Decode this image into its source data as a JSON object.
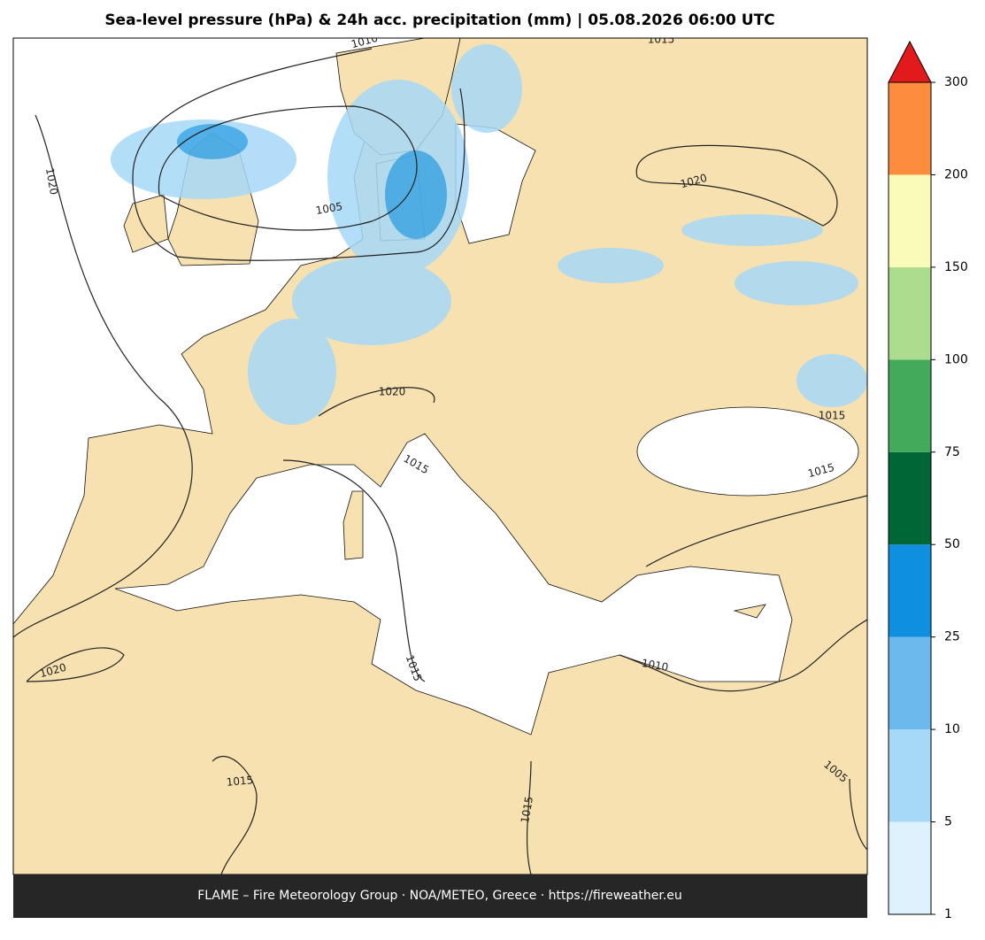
{
  "title": "Sea-level pressure (hPa) & 24h acc. precipitation (mm)  |  05.08.2026 06:00 UTC",
  "footer": "FLAME – Fire Meteorology Group · NOA/METEO, Greece · https://fireweather.eu",
  "contour_labels": [
    "1010",
    "1015",
    "1020",
    "1005",
    "1020",
    "1020",
    "1015",
    "1015",
    "1015",
    "1010",
    "1015",
    "1020",
    "1015",
    "1015",
    "1005"
  ],
  "colorbar": {
    "ticks": [
      1,
      5,
      10,
      25,
      50,
      75,
      100,
      150,
      200,
      300
    ],
    "colors": [
      "#ddf2fd",
      "#a6d8f7",
      "#6cb9ee",
      "#0f8fe0",
      "#016636",
      "#42aa5a",
      "#acdd8e",
      "#f9fbb9",
      "#fd8c3c"
    ],
    "extend_color": "#e31a1c"
  }
}
